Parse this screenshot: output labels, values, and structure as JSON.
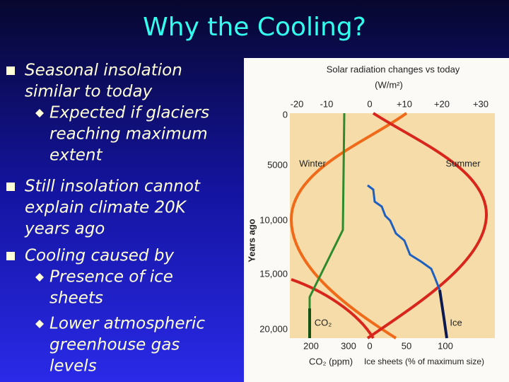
{
  "title": "Why the Cooling?",
  "bullets": [
    {
      "lines": [
        "Seasonal insolation",
        "similar to today"
      ],
      "sub": [
        {
          "lines": [
            "Expected if glaciers",
            "reaching maximum",
            "extent"
          ]
        }
      ]
    },
    {
      "lines": [
        "Still insolation cannot",
        "explain climate 20K",
        "years ago"
      ],
      "sub": []
    },
    {
      "lines": [
        "Cooling caused by"
      ],
      "sub": [
        {
          "lines": [
            "Presence of ice",
            "sheets"
          ]
        },
        {
          "lines": [
            "Lower atmospheric",
            "greenhouse gas",
            "levels"
          ]
        }
      ]
    }
  ],
  "figure": {
    "title": "Solar radiation changes vs today",
    "unit": "(W/m²)",
    "top_ticks": [
      "-20",
      "-10",
      "0",
      "+10",
      "+20",
      "+30"
    ],
    "y_label": "Years ago",
    "y_ticks": [
      "0",
      "5000",
      "10,000",
      "15,000",
      "20,000"
    ],
    "bottom_ticks_co2": [
      "200",
      "300"
    ],
    "bottom_ticks_ice": [
      "0",
      "50",
      "100"
    ],
    "co2_label": "CO₂ (ppm)",
    "ice_label": "Ice sheets (% of maximum size)",
    "winter": "Winter",
    "summer": "Summer",
    "co2": "CO₂",
    "ice": "Ice"
  }
}
